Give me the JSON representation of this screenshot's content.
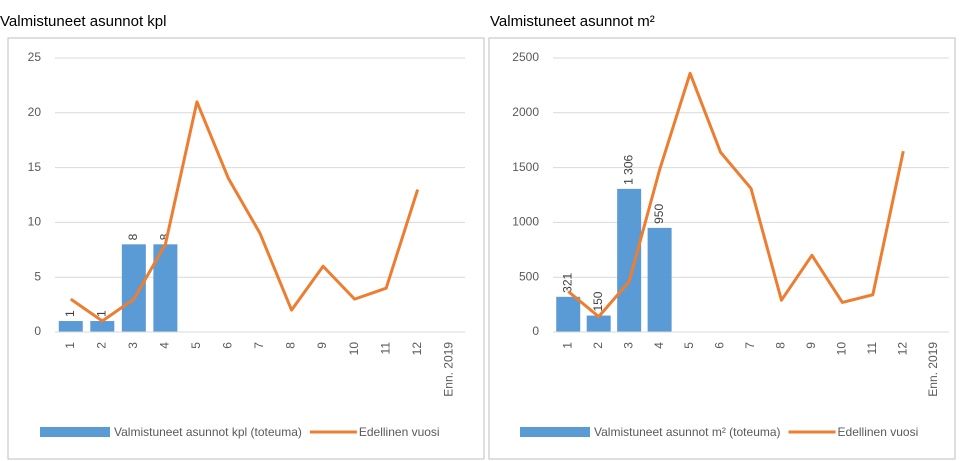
{
  "chart_data": [
    {
      "type": "bar_line",
      "title": "Valmistuneet asunnot kpl",
      "categories": [
        "1",
        "2",
        "3",
        "4",
        "5",
        "6",
        "7",
        "8",
        "9",
        "10",
        "11",
        "12",
        "Enn. 2019"
      ],
      "series": [
        {
          "name": "Valmistuneet asunnot kpl (toteuma)",
          "type": "bar",
          "color": "#5b9bd5",
          "values": [
            1,
            1,
            8,
            8,
            null,
            null,
            null,
            null,
            null,
            null,
            null,
            null,
            null
          ]
        },
        {
          "name": "Edellinen vuosi",
          "type": "line",
          "color": "#ed7d31",
          "values": [
            3,
            1,
            3,
            8,
            21,
            14,
            9,
            2,
            6,
            3,
            4,
            13,
            null
          ]
        }
      ],
      "ylim": [
        0,
        25
      ],
      "yticks": [
        0,
        5,
        10,
        15,
        20,
        25
      ],
      "grid": true,
      "legend": "bottom"
    },
    {
      "type": "bar_line",
      "title": "Valmistuneet asunnot  m²",
      "categories": [
        "1",
        "2",
        "3",
        "4",
        "5",
        "6",
        "7",
        "8",
        "9",
        "10",
        "11",
        "12",
        "Enn. 2019"
      ],
      "series": [
        {
          "name": "Valmistuneet asunnot m² (toteuma)",
          "type": "bar",
          "color": "#5b9bd5",
          "values": [
            321,
            150,
            1306,
            950,
            null,
            null,
            null,
            null,
            null,
            null,
            null,
            null,
            null
          ],
          "value_labels": [
            "321",
            "150",
            "1 306",
            "950",
            null,
            null,
            null,
            null,
            null,
            null,
            null,
            null,
            null
          ]
        },
        {
          "name": "Edellinen vuosi",
          "type": "line",
          "color": "#ed7d31",
          "values": [
            370,
            140,
            460,
            1480,
            2360,
            1640,
            1310,
            290,
            700,
            270,
            340,
            1650,
            null
          ]
        }
      ],
      "ylim": [
        0,
        2500
      ],
      "yticks": [
        0,
        500,
        1000,
        1500,
        2000,
        2500
      ],
      "grid": true,
      "legend": "bottom"
    }
  ]
}
